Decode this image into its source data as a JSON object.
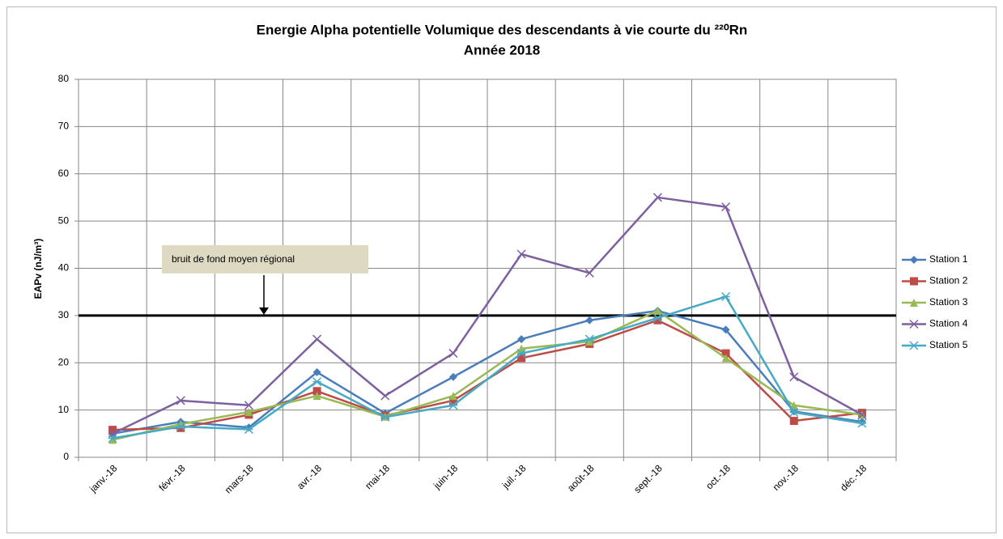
{
  "chart_data": {
    "type": "line",
    "title": "Energie Alpha potentielle Volumique des descendants à vie courte du ²²⁰Rn",
    "subtitle": "Année 2018",
    "y_label": "EAPv (nJ/m³)",
    "categories": [
      "janv.-18",
      "févr.-18",
      "mars-18",
      "avr.-18",
      "mai-18",
      "juin-18",
      "juil.-18",
      "août-18",
      "sept.-18",
      "oct.-18",
      "nov.-18",
      "déc.-18"
    ],
    "series": [
      {
        "name": "Station 1",
        "color": "#4a7ebb",
        "marker": "diamond",
        "values": [
          5,
          7.5,
          6.3,
          18,
          9.3,
          17,
          25,
          29,
          31,
          27,
          9.7,
          7.5
        ]
      },
      {
        "name": "Station 2",
        "color": "#be4b48",
        "marker": "square",
        "values": [
          5.8,
          6.2,
          9,
          14,
          8.8,
          12,
          21,
          24,
          29,
          22,
          7.7,
          9.4
        ]
      },
      {
        "name": "Station 3",
        "color": "#98b954",
        "marker": "triangle",
        "values": [
          3.7,
          7,
          9.6,
          13,
          8.6,
          13,
          23,
          24.5,
          31,
          21,
          11,
          9
        ]
      },
      {
        "name": "Station 4",
        "color": "#7d60a0",
        "marker": "x",
        "values": [
          5,
          12,
          11,
          25,
          13,
          22,
          43,
          39,
          55,
          53,
          17,
          9
        ]
      },
      {
        "name": "Station 5",
        "color": "#46aac5",
        "marker": "star",
        "values": [
          4,
          6.5,
          5.9,
          16,
          8.5,
          11,
          22,
          25,
          29.5,
          34,
          9.5,
          7.2
        ]
      }
    ],
    "reference_line": {
      "value": 30,
      "label": "bruit de fond moyen régional",
      "color": "#000000"
    },
    "ylim": [
      0,
      80
    ],
    "yticks": [
      0,
      10,
      20,
      30,
      40,
      50,
      60,
      70,
      80
    ],
    "grid": true,
    "legend": "right"
  }
}
